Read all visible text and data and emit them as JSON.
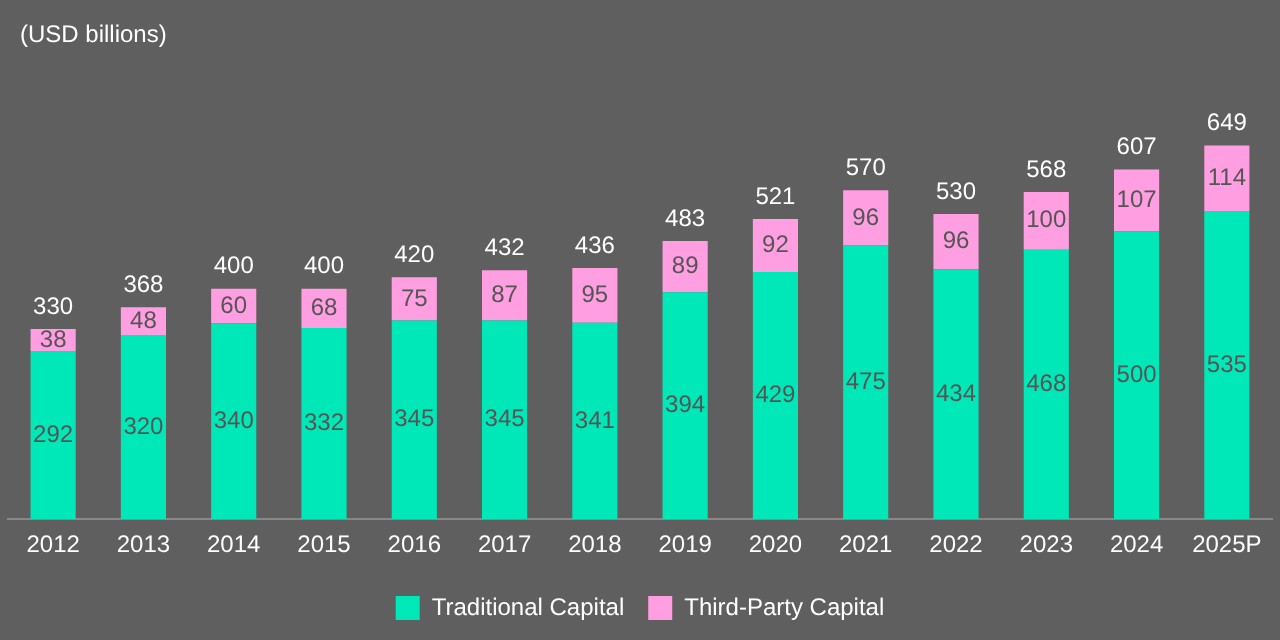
{
  "chart_data": {
    "type": "bar",
    "title": "(USD billions)",
    "categories": [
      "2012",
      "2013",
      "2014",
      "2015",
      "2016",
      "2017",
      "2018",
      "2019",
      "2020",
      "2021",
      "2022",
      "2023",
      "2024",
      "2025P"
    ],
    "series": [
      {
        "name": "Traditional Capital",
        "color": "#00e8b8",
        "values": [
          292,
          320,
          340,
          332,
          345,
          345,
          341,
          394,
          429,
          475,
          434,
          468,
          500,
          535
        ]
      },
      {
        "name": "Third-Party Capital",
        "color": "#ff9ee0",
        "values": [
          38,
          48,
          60,
          68,
          75,
          87,
          95,
          89,
          92,
          96,
          96,
          100,
          107,
          114
        ]
      }
    ],
    "stacked": true,
    "data_labels": true,
    "totals": [
      "330",
      "368",
      "400",
      "400",
      "420",
      "432",
      "436",
      "483",
      "521",
      "570",
      "530",
      "568",
      "607",
      "649"
    ],
    "tick_labels": "x",
    "grid": false,
    "legend": "bottom"
  }
}
